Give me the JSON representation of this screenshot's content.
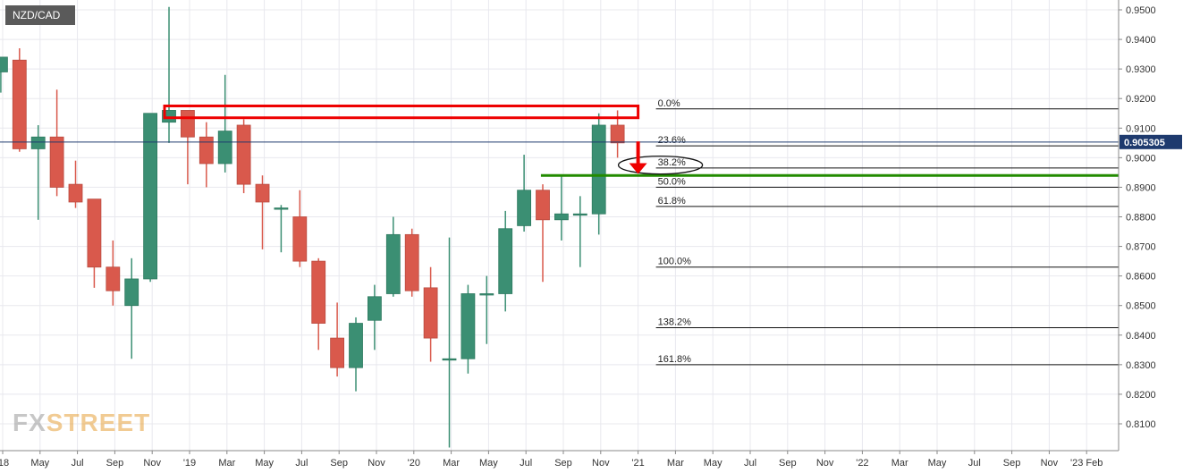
{
  "symbol": "NZD/CAD",
  "price_badge": "0.905305",
  "watermark": {
    "part1": "FX",
    "part2": "STREET"
  },
  "colors": {
    "up": "#3b8f73",
    "down": "#d9594c",
    "up_wick": "#3b8f73",
    "down_wick": "#d9594c",
    "resistance": "#ee0000",
    "support": "#228b00",
    "arrow": "#ee0000",
    "price_line": "#1e3a6e",
    "badge_bg": "#1e3a6e",
    "grid": "#e8e8ee"
  },
  "chart_data": {
    "type": "candlestick",
    "interval": "monthly",
    "ylim": [
      0.801,
      0.953
    ],
    "y_ticks": [
      "0.9500",
      "0.9400",
      "0.9300",
      "0.9200",
      "0.9100",
      "0.9000",
      "0.8900",
      "0.8800",
      "0.8700",
      "0.8600",
      "0.8500",
      "0.8400",
      "0.8300",
      "0.8200",
      "0.8100"
    ],
    "x_ticks": [
      {
        "label": "'18",
        "t": 0
      },
      {
        "label": "May",
        "t": 1
      },
      {
        "label": "Jul",
        "t": 2
      },
      {
        "label": "Sep",
        "t": 3
      },
      {
        "label": "Nov",
        "t": 4
      },
      {
        "label": "'19",
        "t": 5
      },
      {
        "label": "Mar",
        "t": 6
      },
      {
        "label": "May",
        "t": 7
      },
      {
        "label": "Jul",
        "t": 8
      },
      {
        "label": "Sep",
        "t": 9
      },
      {
        "label": "Nov",
        "t": 10
      },
      {
        "label": "'20",
        "t": 11
      },
      {
        "label": "Mar",
        "t": 12
      },
      {
        "label": "May",
        "t": 13
      },
      {
        "label": "Jul",
        "t": 14
      },
      {
        "label": "Sep",
        "t": 15
      },
      {
        "label": "Nov",
        "t": 16
      },
      {
        "label": "'21",
        "t": 17
      },
      {
        "label": "Mar",
        "t": 18
      },
      {
        "label": "May",
        "t": 19
      },
      {
        "label": "Jul",
        "t": 20
      },
      {
        "label": "Sep",
        "t": 21
      },
      {
        "label": "Nov",
        "t": 22
      },
      {
        "label": "'22",
        "t": 23
      },
      {
        "label": "Mar",
        "t": 24
      },
      {
        "label": "May",
        "t": 25
      },
      {
        "label": "Jul",
        "t": 26
      },
      {
        "label": "Sep",
        "t": 27
      },
      {
        "label": "Nov",
        "t": 28
      },
      {
        "label": "'23 Feb",
        "t": 29
      }
    ],
    "candles": [
      {
        "t": -0.05,
        "o": 0.929,
        "h": 0.933,
        "l": 0.922,
        "c": 0.934
      },
      {
        "t": 0.45,
        "o": 0.933,
        "h": 0.937,
        "l": 0.902,
        "c": 0.903
      },
      {
        "t": 0.95,
        "o": 0.903,
        "h": 0.911,
        "l": 0.879,
        "c": 0.907
      },
      {
        "t": 1.45,
        "o": 0.907,
        "h": 0.923,
        "l": 0.887,
        "c": 0.89
      },
      {
        "t": 1.95,
        "o": 0.891,
        "h": 0.899,
        "l": 0.883,
        "c": 0.885
      },
      {
        "t": 2.45,
        "o": 0.886,
        "h": 0.886,
        "l": 0.856,
        "c": 0.863
      },
      {
        "t": 2.95,
        "o": 0.863,
        "h": 0.872,
        "l": 0.85,
        "c": 0.855
      },
      {
        "t": 3.45,
        "o": 0.85,
        "h": 0.866,
        "l": 0.832,
        "c": 0.859
      },
      {
        "t": 3.95,
        "o": 0.859,
        "h": 0.915,
        "l": 0.858,
        "c": 0.915
      },
      {
        "t": 4.45,
        "o": 0.912,
        "h": 0.951,
        "l": 0.905,
        "c": 0.916
      },
      {
        "t": 4.95,
        "o": 0.916,
        "h": 0.916,
        "l": 0.891,
        "c": 0.907
      },
      {
        "t": 5.45,
        "o": 0.907,
        "h": 0.912,
        "l": 0.89,
        "c": 0.898
      },
      {
        "t": 5.95,
        "o": 0.898,
        "h": 0.928,
        "l": 0.895,
        "c": 0.909
      },
      {
        "t": 6.45,
        "o": 0.911,
        "h": 0.913,
        "l": 0.888,
        "c": 0.891
      },
      {
        "t": 6.95,
        "o": 0.891,
        "h": 0.894,
        "l": 0.869,
        "c": 0.885
      },
      {
        "t": 7.45,
        "o": 0.883,
        "h": 0.884,
        "l": 0.868,
        "c": 0.883
      },
      {
        "t": 7.95,
        "o": 0.88,
        "h": 0.889,
        "l": 0.863,
        "c": 0.865
      },
      {
        "t": 8.45,
        "o": 0.865,
        "h": 0.866,
        "l": 0.835,
        "c": 0.844
      },
      {
        "t": 8.95,
        "o": 0.839,
        "h": 0.851,
        "l": 0.826,
        "c": 0.829
      },
      {
        "t": 9.45,
        "o": 0.829,
        "h": 0.846,
        "l": 0.821,
        "c": 0.844
      },
      {
        "t": 9.95,
        "o": 0.845,
        "h": 0.857,
        "l": 0.835,
        "c": 0.853
      },
      {
        "t": 10.45,
        "o": 0.854,
        "h": 0.88,
        "l": 0.853,
        "c": 0.874
      },
      {
        "t": 10.95,
        "o": 0.874,
        "h": 0.876,
        "l": 0.853,
        "c": 0.855
      },
      {
        "t": 11.45,
        "o": 0.856,
        "h": 0.863,
        "l": 0.831,
        "c": 0.839
      },
      {
        "t": 11.95,
        "o": 0.832,
        "h": 0.873,
        "l": 0.802,
        "c": 0.832
      },
      {
        "t": 12.45,
        "o": 0.832,
        "h": 0.857,
        "l": 0.827,
        "c": 0.854
      },
      {
        "t": 12.95,
        "o": 0.854,
        "h": 0.86,
        "l": 0.837,
        "c": 0.854
      },
      {
        "t": 13.45,
        "o": 0.854,
        "h": 0.882,
        "l": 0.848,
        "c": 0.876
      },
      {
        "t": 13.95,
        "o": 0.877,
        "h": 0.901,
        "l": 0.875,
        "c": 0.889
      },
      {
        "t": 14.45,
        "o": 0.889,
        "h": 0.891,
        "l": 0.858,
        "c": 0.879
      },
      {
        "t": 14.95,
        "o": 0.879,
        "h": 0.894,
        "l": 0.872,
        "c": 0.881
      },
      {
        "t": 15.45,
        "o": 0.881,
        "h": 0.887,
        "l": 0.863,
        "c": 0.881
      },
      {
        "t": 15.95,
        "o": 0.881,
        "h": 0.915,
        "l": 0.874,
        "c": 0.911
      },
      {
        "t": 16.45,
        "o": 0.911,
        "h": 0.916,
        "l": 0.9,
        "c": 0.905
      }
    ],
    "fibonacci": [
      {
        "label": "0.0%",
        "y": 0.9165
      },
      {
        "label": "23.6%",
        "y": 0.904
      },
      {
        "label": "38.2%",
        "y": 0.8965
      },
      {
        "label": "50.0%",
        "y": 0.89
      },
      {
        "label": "61.8%",
        "y": 0.8835
      },
      {
        "label": "100.0%",
        "y": 0.863
      },
      {
        "label": "138.2%",
        "y": 0.8425
      },
      {
        "label": "161.8%",
        "y": 0.83
      }
    ],
    "fib_x_start": 17.0,
    "current_price": 0.905305,
    "resistance_zone": {
      "t1": 4.45,
      "t2": 17.0,
      "y_top": 0.9175,
      "y_bottom": 0.9135
    },
    "support_line": {
      "t1": 14.4,
      "y": 0.894
    },
    "arrow": {
      "t": 17.0,
      "y_from": 0.9055,
      "y_to": 0.8945
    },
    "ellipse": {
      "t": 17.0,
      "y": 0.8975
    }
  }
}
